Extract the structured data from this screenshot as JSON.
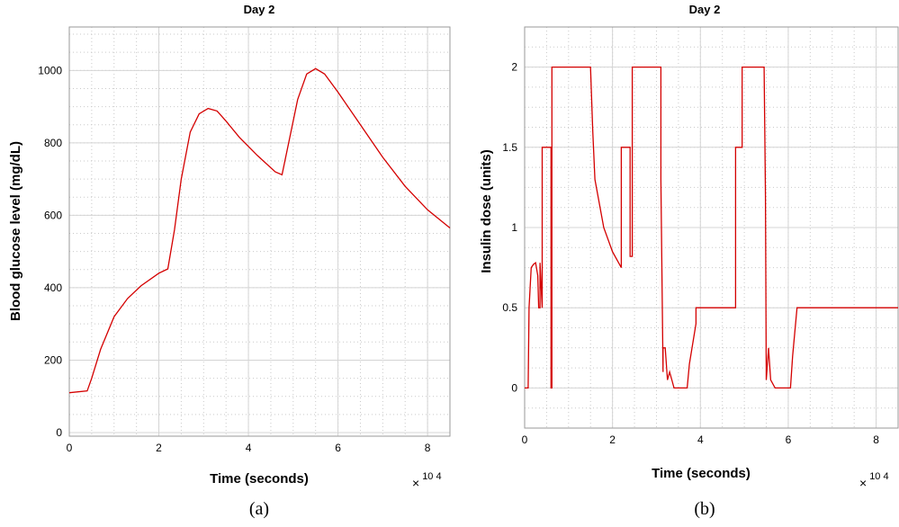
{
  "chart_data": [
    {
      "type": "line",
      "title": "Day 2",
      "xlabel": "Time (seconds)",
      "ylabel": "Blood glucose level (mg/dL)",
      "x_multiplier": "× 10 4",
      "xlim": [
        0,
        8.5
      ],
      "ylim": [
        -10,
        1120
      ],
      "xticks": [
        0,
        2,
        4,
        6,
        8
      ],
      "yticks": [
        0,
        200,
        400,
        600,
        800,
        1000
      ],
      "grid": true,
      "caption": "(a)",
      "color": "#d40000",
      "series": [
        {
          "x": [
            0,
            0.4,
            0.5,
            0.7,
            1.0,
            1.3,
            1.6,
            2.0,
            2.2,
            2.35,
            2.5,
            2.7,
            2.9,
            3.1,
            3.3,
            3.5,
            3.8,
            4.2,
            4.6,
            4.75,
            4.9,
            5.1,
            5.3,
            5.5,
            5.7,
            6.0,
            6.5,
            7.0,
            7.5,
            8.0,
            8.5
          ],
          "y": [
            110,
            115,
            150,
            230,
            320,
            370,
            405,
            440,
            452,
            560,
            700,
            830,
            880,
            895,
            888,
            860,
            815,
            765,
            720,
            712,
            800,
            920,
            990,
            1005,
            990,
            940,
            850,
            760,
            680,
            615,
            565
          ]
        }
      ]
    },
    {
      "type": "line",
      "title": "Day 2",
      "xlabel": "Time (seconds)",
      "ylabel": "Insulin dose (units)",
      "x_multiplier": "× 10 4",
      "xlim": [
        0,
        8.5
      ],
      "ylim": [
        -0.25,
        2.25
      ],
      "xticks": [
        0,
        2,
        4,
        6,
        8
      ],
      "yticks": [
        0,
        0.5,
        1,
        1.5,
        2
      ],
      "ytick_labels": [
        "0",
        "0.5",
        "1",
        "1.5",
        "2"
      ],
      "grid": true,
      "caption": "(b)",
      "color": "#d40000",
      "series": [
        {
          "x": [
            0,
            0.08,
            0.1,
            0.15,
            0.2,
            0.25,
            0.3,
            0.32,
            0.35,
            0.35,
            0.4,
            0.4,
            0.6,
            0.6,
            0.62,
            0.62,
            0.62,
            1.5,
            1.55,
            1.6,
            1.8,
            2.0,
            2.2,
            2.2,
            2.4,
            2.4,
            2.45,
            2.45,
            2.5,
            3.1,
            3.1,
            3.15,
            3.15,
            3.2,
            3.25,
            3.3,
            3.35,
            3.4,
            3.7,
            3.75,
            3.9,
            3.9,
            4.8,
            4.8,
            4.95,
            4.95,
            5.45,
            5.48,
            5.5,
            5.55,
            5.6,
            5.7,
            6.05,
            6.1,
            6.2,
            8.5
          ],
          "y": [
            0,
            0,
            0.5,
            0.75,
            0.77,
            0.78,
            0.7,
            0.5,
            0.5,
            0.78,
            0.5,
            1.5,
            1.5,
            0,
            0,
            2.0,
            2.0,
            2.0,
            1.6,
            1.3,
            1.0,
            0.85,
            0.75,
            1.5,
            1.5,
            0.82,
            0.82,
            2.0,
            2.0,
            2.0,
            1.3,
            0.1,
            0.25,
            0.25,
            0.05,
            0.1,
            0.05,
            0,
            0,
            0.15,
            0.4,
            0.5,
            0.5,
            1.5,
            1.5,
            2.0,
            2.0,
            1.2,
            0.05,
            0.25,
            0.05,
            0,
            0,
            0.2,
            0.5,
            0.5
          ]
        }
      ]
    }
  ]
}
